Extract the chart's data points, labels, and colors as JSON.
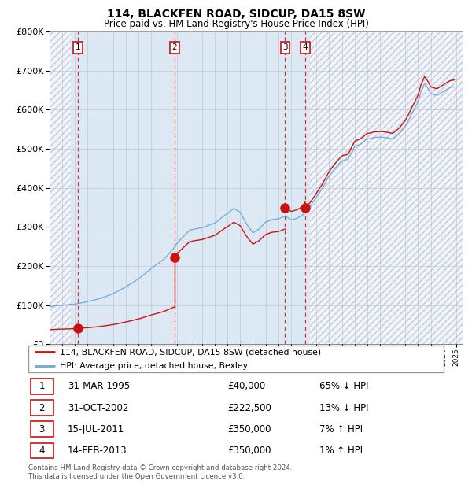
{
  "title": "114, BLACKFEN ROAD, SIDCUP, DA15 8SW",
  "subtitle": "Price paid vs. HM Land Registry's House Price Index (HPI)",
  "footer": "Contains HM Land Registry data © Crown copyright and database right 2024.\nThis data is licensed under the Open Government Licence v3.0.",
  "legend_line1": "114, BLACKFEN ROAD, SIDCUP, DA15 8SW (detached house)",
  "legend_line2": "HPI: Average price, detached house, Bexley",
  "sale_times": [
    1995.25,
    2002.83,
    2011.54,
    2013.12
  ],
  "sale_prices": [
    40000,
    222500,
    350000,
    350000
  ],
  "table_rows": [
    [
      "1",
      "31-MAR-1995",
      "£40,000",
      "65% ↓ HPI"
    ],
    [
      "2",
      "31-OCT-2002",
      "£222,500",
      "13% ↓ HPI"
    ],
    [
      "3",
      "15-JUL-2011",
      "£350,000",
      "7% ↑ HPI"
    ],
    [
      "4",
      "14-FEB-2013",
      "£350,000",
      "1% ↑ HPI"
    ]
  ],
  "hpi_color": "#6fa8d4",
  "price_color": "#cc1111",
  "dot_color": "#cc1111",
  "vline_color": "#cc1111",
  "bg_blue": "#dce9f5",
  "bg_hatch_color": "#c8c8d8",
  "grid_color": "#bbbbbb",
  "ylim": [
    0,
    800000
  ],
  "xlim_start": 1993.0,
  "xlim_end": 2025.5,
  "yticks": [
    0,
    100000,
    200000,
    300000,
    400000,
    500000,
    600000,
    700000,
    800000
  ],
  "hpi_anchors": [
    [
      1993.0,
      95000
    ],
    [
      1994.0,
      100000
    ],
    [
      1995.0,
      103000
    ],
    [
      1995.25,
      105000
    ],
    [
      1996.0,
      110000
    ],
    [
      1997.0,
      118000
    ],
    [
      1998.0,
      130000
    ],
    [
      1999.0,
      148000
    ],
    [
      2000.0,
      168000
    ],
    [
      2001.0,
      195000
    ],
    [
      2002.0,
      218000
    ],
    [
      2002.83,
      248000
    ],
    [
      2003.0,
      258000
    ],
    [
      2004.0,
      292000
    ],
    [
      2005.0,
      298000
    ],
    [
      2006.0,
      310000
    ],
    [
      2007.0,
      335000
    ],
    [
      2007.5,
      348000
    ],
    [
      2008.0,
      338000
    ],
    [
      2008.5,
      308000
    ],
    [
      2009.0,
      285000
    ],
    [
      2009.5,
      295000
    ],
    [
      2010.0,
      312000
    ],
    [
      2010.5,
      318000
    ],
    [
      2011.0,
      320000
    ],
    [
      2011.54,
      328000
    ],
    [
      2012.0,
      318000
    ],
    [
      2012.5,
      322000
    ],
    [
      2013.0,
      332000
    ],
    [
      2013.12,
      340000
    ],
    [
      2013.5,
      352000
    ],
    [
      2014.0,
      375000
    ],
    [
      2014.5,
      400000
    ],
    [
      2015.0,
      430000
    ],
    [
      2015.5,
      450000
    ],
    [
      2016.0,
      468000
    ],
    [
      2016.5,
      472000
    ],
    [
      2017.0,
      505000
    ],
    [
      2017.5,
      512000
    ],
    [
      2018.0,
      525000
    ],
    [
      2018.5,
      528000
    ],
    [
      2019.0,
      530000
    ],
    [
      2019.5,
      528000
    ],
    [
      2020.0,
      525000
    ],
    [
      2020.5,
      538000
    ],
    [
      2021.0,
      558000
    ],
    [
      2021.5,
      590000
    ],
    [
      2022.0,
      622000
    ],
    [
      2022.25,
      650000
    ],
    [
      2022.5,
      668000
    ],
    [
      2022.75,
      658000
    ],
    [
      2023.0,
      642000
    ],
    [
      2023.5,
      638000
    ],
    [
      2024.0,
      648000
    ],
    [
      2024.5,
      658000
    ],
    [
      2024.9,
      660000
    ]
  ]
}
